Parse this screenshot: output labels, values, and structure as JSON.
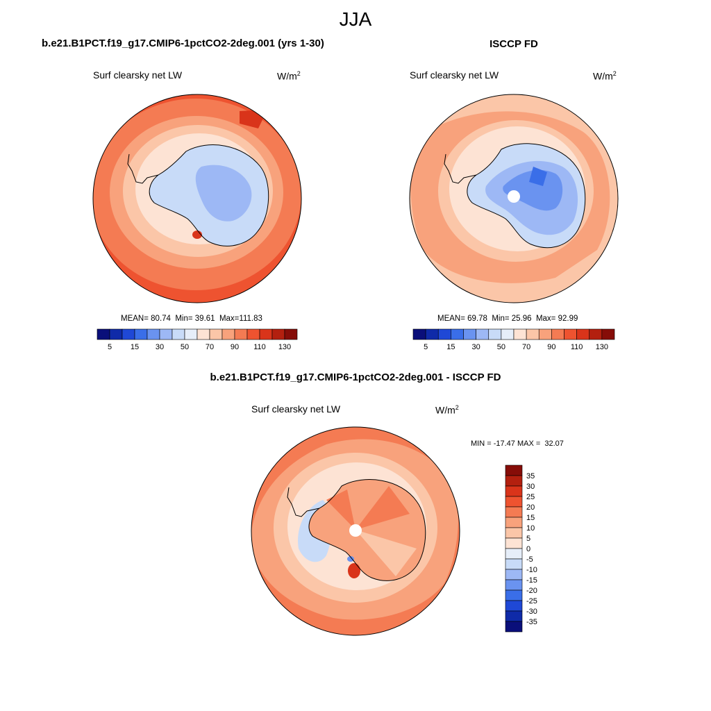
{
  "title": "JJA",
  "panels": [
    {
      "id": "model",
      "header": "b.e21.B1PCT.f19_g17.CMIP6-1pctCO2-2deg.001 (yrs 1-30)",
      "left_label": "Surf clearsky net LW",
      "units_base": "W/m",
      "units_sup": "2",
      "stats": {
        "mean_label": "MEAN=",
        "mean": "80.74",
        "min_label": "Min=",
        "min": "39.61",
        "max_label": "Max=",
        "max": "111.83"
      },
      "colorbar_labels": [
        "5",
        "15",
        "30",
        "50",
        "70",
        "90",
        "110",
        "130"
      ]
    },
    {
      "id": "obs",
      "header": "ISCCP FD",
      "left_label": "Surf clearsky net LW",
      "units_base": "W/m",
      "units_sup": "2",
      "stats": {
        "mean_label": "MEAN=",
        "mean": "69.78",
        "min_label": "Min=",
        "min": "25.96",
        "max_label": "Max=",
        "max": "92.99"
      },
      "colorbar_labels": [
        "5",
        "15",
        "30",
        "50",
        "70",
        "90",
        "110",
        "130"
      ]
    },
    {
      "id": "diff",
      "header": "b.e21.B1PCT.f19_g17.CMIP6-1pctCO2-2deg.001 - ISCCP FD",
      "left_label": "Surf clearsky net LW",
      "units_base": "W/m",
      "units_sup": "2",
      "minmax_text": "MIN = -17.47 MAX =  32.07",
      "colorbar_labels": [
        "35",
        "30",
        "25",
        "20",
        "15",
        "10",
        "5",
        "0",
        "-5",
        "-10",
        "-15",
        "-20",
        "-25",
        "-30",
        "-35"
      ]
    }
  ],
  "abs_colors": [
    "#0a0f7a",
    "#0f2aa8",
    "#1f48d6",
    "#3a6ee8",
    "#6a93f0",
    "#9db8f5",
    "#c8dbf8",
    "#e6eef9",
    "#fde3d4",
    "#fbc6a8",
    "#f8a27c",
    "#f47b53",
    "#ee5330",
    "#d9341a",
    "#b3200f",
    "#860d08"
  ],
  "diff_colors": [
    "#860d08",
    "#b3200f",
    "#d9341a",
    "#ee5330",
    "#f47b53",
    "#f8a27c",
    "#fbc6a8",
    "#fde3d4",
    "#e6eef9",
    "#c8dbf8",
    "#9db8f5",
    "#6a93f0",
    "#3a6ee8",
    "#1f48d6",
    "#0f2aa8",
    "#0a0f7a"
  ]
}
